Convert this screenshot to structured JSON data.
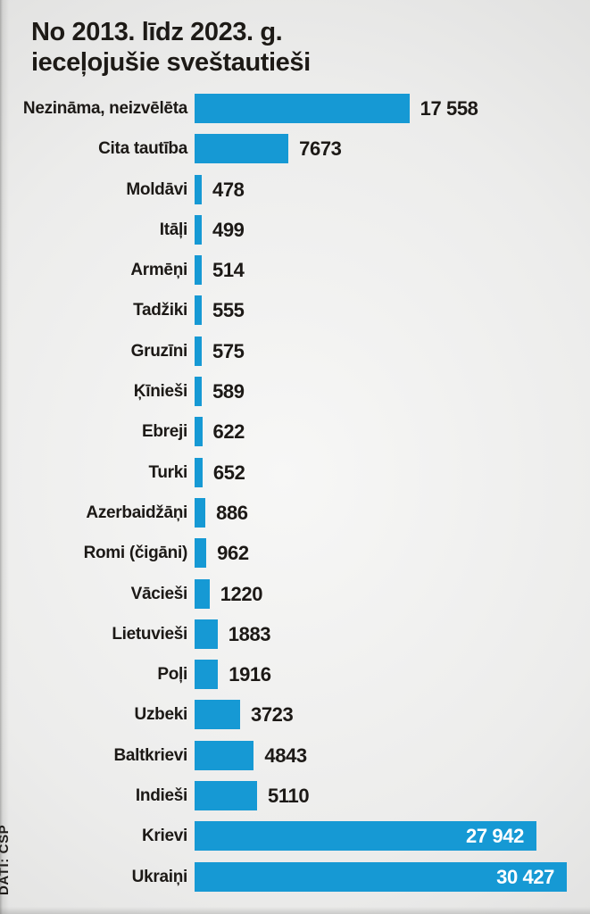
{
  "page": {
    "title_line1": "No 2013. līdz 2023. g.",
    "title_line2": "ieceļojušie sveštautieši",
    "credit": "DATI: CSP"
  },
  "colors": {
    "bar": "#1699d4",
    "text": "#1c1916",
    "value_inside_text": "#ffffff",
    "background_center": "#f7f7f6",
    "background_corner": "#cccccb"
  },
  "chart_data": {
    "type": "bar",
    "orientation": "horizontal",
    "title": "No 2013. līdz 2023. g. ieceļojušie sveštautieši",
    "source": "DATI: CSP",
    "bar_color": "#1699d4",
    "xlim": [
      0,
      30427
    ],
    "grid": false,
    "legend": false,
    "categories": [
      "Nezināma, neizvēlēta",
      "Cita tautība",
      "Moldāvi",
      "Itāļi",
      "Armēņi",
      "Tadžiki",
      "Gruzīni",
      "Ķīnieši",
      "Ebreji",
      "Turki",
      "Azerbaidžāņi",
      "Romi (čigāni)",
      "Vācieši",
      "Lietuvieši",
      "Poļi",
      "Uzbeki",
      "Baltkrievi",
      "Indieši",
      "Krievi",
      "Ukraiņi"
    ],
    "values": [
      17558,
      7673,
      478,
      499,
      514,
      555,
      575,
      589,
      622,
      652,
      886,
      962,
      1220,
      1883,
      1916,
      3723,
      4843,
      5110,
      27942,
      30427
    ],
    "value_labels": [
      "17 558",
      "7673",
      "478",
      "499",
      "514",
      "555",
      "575",
      "589",
      "622",
      "652",
      "886",
      "962",
      "1220",
      "1883",
      "1916",
      "3723",
      "4843",
      "5110",
      "27 942",
      "30 427"
    ],
    "value_label_placement": [
      "outside",
      "outside",
      "outside",
      "outside",
      "outside",
      "outside",
      "outside",
      "outside",
      "outside",
      "outside",
      "outside",
      "outside",
      "outside",
      "outside",
      "outside",
      "outside",
      "outside",
      "outside",
      "inside",
      "inside"
    ]
  }
}
